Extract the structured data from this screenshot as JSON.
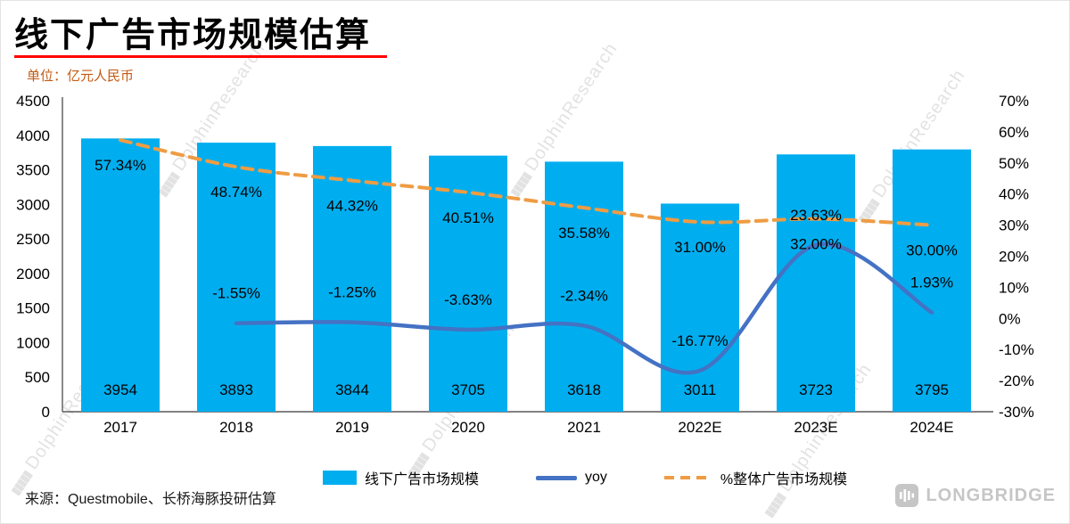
{
  "header": {
    "title": "线下广告市场规模估算",
    "unit": "单位：亿元人民币"
  },
  "chart_data": {
    "type": "combo-bar-line",
    "categories": [
      "2017",
      "2018",
      "2019",
      "2020",
      "2021",
      "2022E",
      "2023E",
      "2024E"
    ],
    "series": [
      {
        "name": "线下广告市场规模",
        "type": "bar",
        "axis": "left",
        "color": "#00AEEF",
        "values": [
          3954,
          3893,
          3844,
          3705,
          3618,
          3011,
          3723,
          3795
        ],
        "labels": [
          "3954",
          "3893",
          "3844",
          "3705",
          "3618",
          "3011",
          "3723",
          "3795"
        ]
      },
      {
        "name": "yoy",
        "type": "line",
        "axis": "right",
        "color": "#4472C4",
        "values": [
          null,
          -1.55,
          -1.25,
          -3.63,
          -2.34,
          -16.77,
          23.63,
          1.93
        ],
        "labels": [
          null,
          "-1.55%",
          "-1.25%",
          "-3.63%",
          "-2.34%",
          "-16.77%",
          "23.63%",
          "1.93%"
        ]
      },
      {
        "name": "%整体广告市场规模",
        "type": "dashed-line",
        "axis": "right",
        "color": "#EF9C43",
        "values": [
          57.34,
          48.74,
          44.32,
          40.51,
          35.58,
          31.0,
          32.0,
          30.0
        ],
        "labels": [
          "57.34%",
          "48.74%",
          "44.32%",
          "40.51%",
          "35.58%",
          "31.00%",
          "32.00%",
          "30.00%"
        ]
      }
    ],
    "left_axis": {
      "min": 0,
      "max": 4500,
      "step": 500
    },
    "right_axis": {
      "min": -30,
      "max": 70,
      "step": 10,
      "suffix": "%"
    },
    "grid": false,
    "legend_position": "bottom"
  },
  "legend": [
    {
      "label": "线下广告市场规模",
      "type": "bar",
      "color": "#00AEEF"
    },
    {
      "label": "yoy",
      "type": "line",
      "color": "#4472C4"
    },
    {
      "label": "%整体广告市场规模",
      "type": "dashed",
      "color": "#EF9C43"
    }
  ],
  "watermark": {
    "bars": "▮▮▮▮▮",
    "text": "DolphinResearch"
  },
  "footer": {
    "source": "来源：Questmobile、长桥海豚投研估算",
    "brand": "LONGBRIDGE"
  },
  "colors": {
    "bar": "#00AEEF",
    "yoy_line": "#4472C4",
    "pct_line": "#EF9C43",
    "title_underline": "#FE0000",
    "unit_text": "#C55A11"
  }
}
